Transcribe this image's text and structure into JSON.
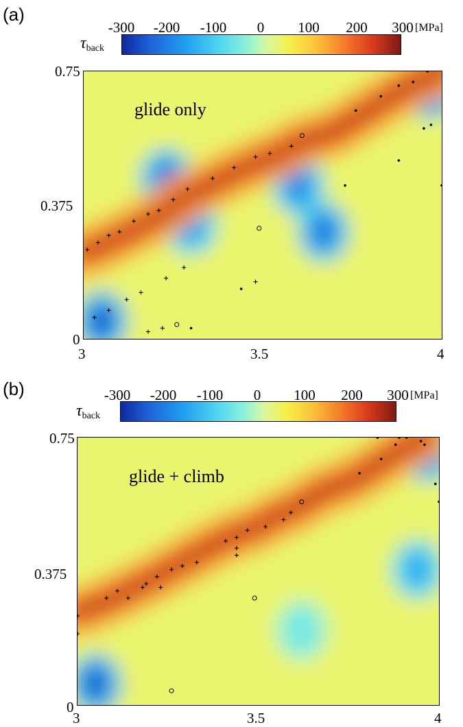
{
  "panels": [
    {
      "label": "(a)",
      "annotation": "glide only",
      "colorbar": {
        "ticks": [
          "-300",
          "-200",
          "-100",
          "0",
          "100",
          "200",
          "300"
        ],
        "unit": "[MPa]",
        "symbol": "τ",
        "symbol_sub": "back"
      },
      "x_ticks": [
        "3",
        "3.5",
        "4"
      ],
      "y_ticks": [
        "0.75",
        "0.375",
        "0"
      ]
    },
    {
      "label": "(b)",
      "annotation": "glide + climb",
      "colorbar": {
        "ticks": [
          "-300",
          "-200",
          "-100",
          "0",
          "100",
          "200",
          "300"
        ],
        "unit": "[MPa]",
        "symbol": "τ",
        "symbol_sub": "back"
      },
      "x_ticks": [
        "3",
        "3.5",
        "4"
      ],
      "y_ticks": [
        "0.75",
        "0.375",
        "0"
      ]
    }
  ],
  "chart_data": [
    {
      "type": "heatmap",
      "title": "",
      "xlabel": "",
      "ylabel": "",
      "xlim": [
        3,
        4
      ],
      "ylim": [
        0,
        0.75
      ],
      "colorbar_range": [
        -300,
        300
      ],
      "colorbar_unit": "MPa",
      "colormap": "jet",
      "hot_bands": [
        {
          "x": [
            3.0,
            3.07,
            3.15,
            3.22,
            3.27,
            3.35,
            3.43,
            3.5,
            3.55,
            3.6,
            3.7,
            3.78,
            3.86,
            3.93,
            4.0
          ],
          "y": [
            0.24,
            0.27,
            0.31,
            0.35,
            0.39,
            0.43,
            0.47,
            0.5,
            0.52,
            0.55,
            0.58,
            0.63,
            0.68,
            0.72,
            0.75
          ]
        }
      ],
      "cold_spots": [
        {
          "x": 3.23,
          "y": 0.45,
          "v": -220
        },
        {
          "x": 3.3,
          "y": 0.32,
          "v": -180
        },
        {
          "x": 3.6,
          "y": 0.43,
          "v": -200
        },
        {
          "x": 3.67,
          "y": 0.3,
          "v": -220
        },
        {
          "x": 3.05,
          "y": 0.05,
          "v": -250
        },
        {
          "x": 3.97,
          "y": 0.7,
          "v": -250
        }
      ],
      "dislocations_plus": [
        {
          "x": 3.01,
          "y": 0.25
        },
        {
          "x": 3.04,
          "y": 0.27
        },
        {
          "x": 3.07,
          "y": 0.29
        },
        {
          "x": 3.1,
          "y": 0.3
        },
        {
          "x": 3.14,
          "y": 0.33
        },
        {
          "x": 3.18,
          "y": 0.35
        },
        {
          "x": 3.21,
          "y": 0.36
        },
        {
          "x": 3.25,
          "y": 0.39
        },
        {
          "x": 3.29,
          "y": 0.42
        },
        {
          "x": 3.36,
          "y": 0.45
        },
        {
          "x": 3.42,
          "y": 0.48
        },
        {
          "x": 3.48,
          "y": 0.51
        },
        {
          "x": 3.52,
          "y": 0.52
        },
        {
          "x": 3.58,
          "y": 0.54
        },
        {
          "x": 3.03,
          "y": 0.06
        },
        {
          "x": 3.07,
          "y": 0.08
        },
        {
          "x": 3.12,
          "y": 0.11
        },
        {
          "x": 3.16,
          "y": 0.13
        },
        {
          "x": 3.18,
          "y": 0.02
        },
        {
          "x": 3.22,
          "y": 0.03
        },
        {
          "x": 3.23,
          "y": 0.17
        },
        {
          "x": 3.28,
          "y": 0.2
        },
        {
          "x": 3.48,
          "y": 0.16
        }
      ],
      "dislocations_dot": [
        {
          "x": 3.76,
          "y": 0.64
        },
        {
          "x": 3.83,
          "y": 0.68
        },
        {
          "x": 3.88,
          "y": 0.71
        },
        {
          "x": 3.92,
          "y": 0.72
        },
        {
          "x": 3.96,
          "y": 0.75
        },
        {
          "x": 3.97,
          "y": 0.6
        },
        {
          "x": 3.95,
          "y": 0.59
        },
        {
          "x": 3.88,
          "y": 0.5
        },
        {
          "x": 3.73,
          "y": 0.43
        },
        {
          "x": 4.0,
          "y": 0.43
        },
        {
          "x": 3.44,
          "y": 0.14
        },
        {
          "x": 3.3,
          "y": 0.03
        }
      ],
      "dislocations_circle": [
        {
          "x": 3.61,
          "y": 0.57
        },
        {
          "x": 3.49,
          "y": 0.31
        },
        {
          "x": 3.26,
          "y": 0.04
        }
      ]
    },
    {
      "type": "heatmap",
      "title": "",
      "xlabel": "",
      "ylabel": "",
      "xlim": [
        3,
        4
      ],
      "ylim": [
        0,
        0.75
      ],
      "colorbar_range": [
        -300,
        300
      ],
      "colorbar_unit": "MPa",
      "colormap": "jet",
      "hot_bands": [
        {
          "x": [
            3.0,
            3.08,
            3.16,
            3.22,
            3.29,
            3.36,
            3.42,
            3.5,
            3.55,
            3.6,
            3.68,
            3.76,
            3.84,
            3.9,
            3.96
          ],
          "y": [
            0.26,
            0.29,
            0.33,
            0.36,
            0.4,
            0.44,
            0.47,
            0.5,
            0.53,
            0.55,
            0.6,
            0.63,
            0.68,
            0.72,
            0.75
          ]
        }
      ],
      "cold_spots": [
        {
          "x": 3.05,
          "y": 0.06,
          "v": -250
        },
        {
          "x": 3.97,
          "y": 0.71,
          "v": -220
        },
        {
          "x": 3.94,
          "y": 0.38,
          "v": -150
        },
        {
          "x": 3.62,
          "y": 0.21,
          "v": -60
        }
      ],
      "dislocations_plus": [
        {
          "x": 3.0,
          "y": 0.2
        },
        {
          "x": 3.0,
          "y": 0.25
        },
        {
          "x": 3.08,
          "y": 0.3
        },
        {
          "x": 3.11,
          "y": 0.32
        },
        {
          "x": 3.14,
          "y": 0.3
        },
        {
          "x": 3.18,
          "y": 0.33
        },
        {
          "x": 3.19,
          "y": 0.34
        },
        {
          "x": 3.22,
          "y": 0.36
        },
        {
          "x": 3.26,
          "y": 0.38
        },
        {
          "x": 3.29,
          "y": 0.39
        },
        {
          "x": 3.33,
          "y": 0.4
        },
        {
          "x": 3.41,
          "y": 0.46
        },
        {
          "x": 3.44,
          "y": 0.47
        },
        {
          "x": 3.44,
          "y": 0.44
        },
        {
          "x": 3.47,
          "y": 0.49
        },
        {
          "x": 3.52,
          "y": 0.5
        },
        {
          "x": 3.57,
          "y": 0.52
        },
        {
          "x": 3.59,
          "y": 0.54
        },
        {
          "x": 3.44,
          "y": 0.42
        },
        {
          "x": 3.23,
          "y": 0.33
        }
      ],
      "dislocations_dot": [
        {
          "x": 3.78,
          "y": 0.65
        },
        {
          "x": 3.84,
          "y": 0.69
        },
        {
          "x": 3.88,
          "y": 0.73
        },
        {
          "x": 3.91,
          "y": 0.75
        },
        {
          "x": 3.95,
          "y": 0.74
        },
        {
          "x": 3.96,
          "y": 0.73
        },
        {
          "x": 3.99,
          "y": 0.62
        },
        {
          "x": 4.0,
          "y": 0.57
        },
        {
          "x": 3.83,
          "y": 0.75
        },
        {
          "x": 3.89,
          "y": 0.75
        }
      ],
      "dislocations_circle": [
        {
          "x": 3.62,
          "y": 0.57
        },
        {
          "x": 3.49,
          "y": 0.3
        },
        {
          "x": 3.26,
          "y": 0.04
        }
      ]
    }
  ]
}
